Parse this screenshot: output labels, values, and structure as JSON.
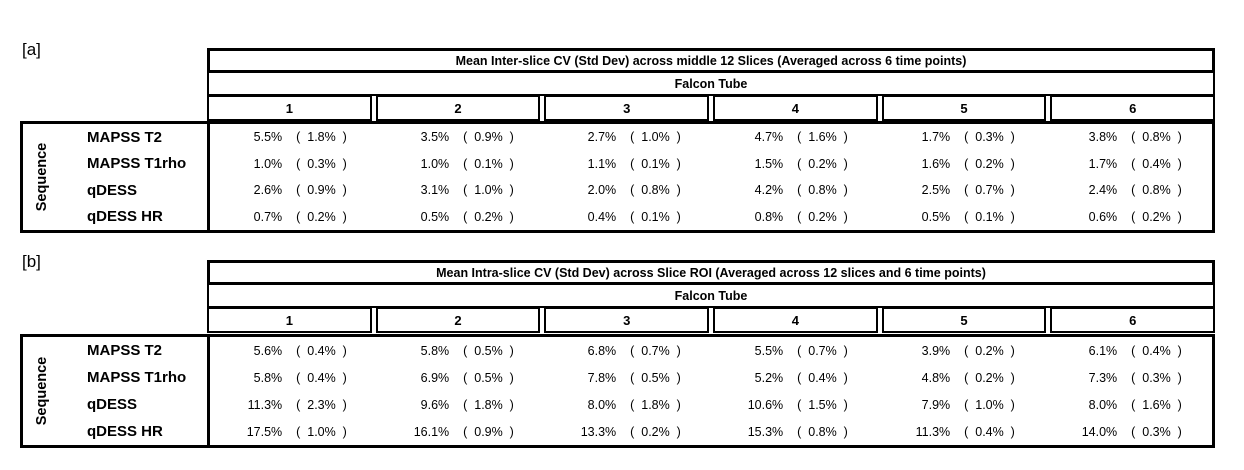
{
  "tables": [
    {
      "panel_label": "[a]",
      "title": "Mean Inter-slice CV (Std Dev) across middle 12 Slices (Averaged across 6 time points)",
      "group_label": "Falcon Tube",
      "columns": [
        "1",
        "2",
        "3",
        "4",
        "5",
        "6"
      ],
      "axis_label": "Sequence",
      "rows": [
        {
          "label": "MAPSS T2",
          "cells": [
            {
              "val": "5.5%",
              "std": "(  1.8%  )"
            },
            {
              "val": "3.5%",
              "std": "(  0.9%  )"
            },
            {
              "val": "2.7%",
              "std": "(  1.0%  )"
            },
            {
              "val": "4.7%",
              "std": "(  1.6%  )"
            },
            {
              "val": "1.7%",
              "std": "(  0.3%  )"
            },
            {
              "val": "3.8%",
              "std": "(  0.8%  )"
            }
          ]
        },
        {
          "label": "MAPSS T1rho",
          "cells": [
            {
              "val": "1.0%",
              "std": "(  0.3%  )"
            },
            {
              "val": "1.0%",
              "std": "(  0.1%  )"
            },
            {
              "val": "1.1%",
              "std": "(  0.1%  )"
            },
            {
              "val": "1.5%",
              "std": "(  0.2%  )"
            },
            {
              "val": "1.6%",
              "std": "(  0.2%  )"
            },
            {
              "val": "1.7%",
              "std": "(  0.4%  )"
            }
          ]
        },
        {
          "label": "qDESS",
          "cells": [
            {
              "val": "2.6%",
              "std": "(  0.9%  )"
            },
            {
              "val": "3.1%",
              "std": "(  1.0%  )"
            },
            {
              "val": "2.0%",
              "std": "(  0.8%  )"
            },
            {
              "val": "4.2%",
              "std": "(  0.8%  )"
            },
            {
              "val": "2.5%",
              "std": "(  0.7%  )"
            },
            {
              "val": "2.4%",
              "std": "(  0.8%  )"
            }
          ]
        },
        {
          "label": "qDESS HR",
          "cells": [
            {
              "val": "0.7%",
              "std": "(  0.2%  )"
            },
            {
              "val": "0.5%",
              "std": "(  0.2%  )"
            },
            {
              "val": "0.4%",
              "std": "(  0.1%  )"
            },
            {
              "val": "0.8%",
              "std": "(  0.2%  )"
            },
            {
              "val": "0.5%",
              "std": "(  0.1%  )"
            },
            {
              "val": "0.6%",
              "std": "(  0.2%  )"
            }
          ]
        }
      ]
    },
    {
      "panel_label": "[b]",
      "title": "Mean Intra-slice CV (Std Dev) across Slice ROI (Averaged across 12 slices and 6 time points)",
      "group_label": "Falcon Tube",
      "columns": [
        "1",
        "2",
        "3",
        "4",
        "5",
        "6"
      ],
      "axis_label": "Sequence",
      "rows": [
        {
          "label": "MAPSS T2",
          "cells": [
            {
              "val": "5.6%",
              "std": "(  0.4%  )"
            },
            {
              "val": "5.8%",
              "std": "(  0.5%  )"
            },
            {
              "val": "6.8%",
              "std": "(  0.7%  )"
            },
            {
              "val": "5.5%",
              "std": "(  0.7%  )"
            },
            {
              "val": "3.9%",
              "std": "(  0.2%  )"
            },
            {
              "val": "6.1%",
              "std": "(  0.4%  )"
            }
          ]
        },
        {
          "label": "MAPSS T1rho",
          "cells": [
            {
              "val": "5.8%",
              "std": "(  0.4%  )"
            },
            {
              "val": "6.9%",
              "std": "(  0.5%  )"
            },
            {
              "val": "7.8%",
              "std": "(  0.5%  )"
            },
            {
              "val": "5.2%",
              "std": "(  0.4%  )"
            },
            {
              "val": "4.8%",
              "std": "(  0.2%  )"
            },
            {
              "val": "7.3%",
              "std": "(  0.3%  )"
            }
          ]
        },
        {
          "label": "qDESS",
          "cells": [
            {
              "val": "11.3%",
              "std": "(  2.3%  )"
            },
            {
              "val": "9.6%",
              "std": "(  1.8%  )"
            },
            {
              "val": "8.0%",
              "std": "(  1.8%  )"
            },
            {
              "val": "10.6%",
              "std": "(  1.5%  )"
            },
            {
              "val": "7.9%",
              "std": "(  1.0%  )"
            },
            {
              "val": "8.0%",
              "std": "(  1.6%  )"
            }
          ]
        },
        {
          "label": "qDESS HR",
          "cells": [
            {
              "val": "17.5%",
              "std": "(  1.0%  )"
            },
            {
              "val": "16.1%",
              "std": "(  0.9%  )"
            },
            {
              "val": "13.3%",
              "std": "(  0.2%  )"
            },
            {
              "val": "15.3%",
              "std": "(  0.8%  )"
            },
            {
              "val": "11.3%",
              "std": "(  0.4%  )"
            },
            {
              "val": "14.0%",
              "std": "(  0.3%  )"
            }
          ]
        }
      ]
    }
  ],
  "colors": {
    "border": "#000000",
    "text": "#000000",
    "background": "#ffffff"
  }
}
